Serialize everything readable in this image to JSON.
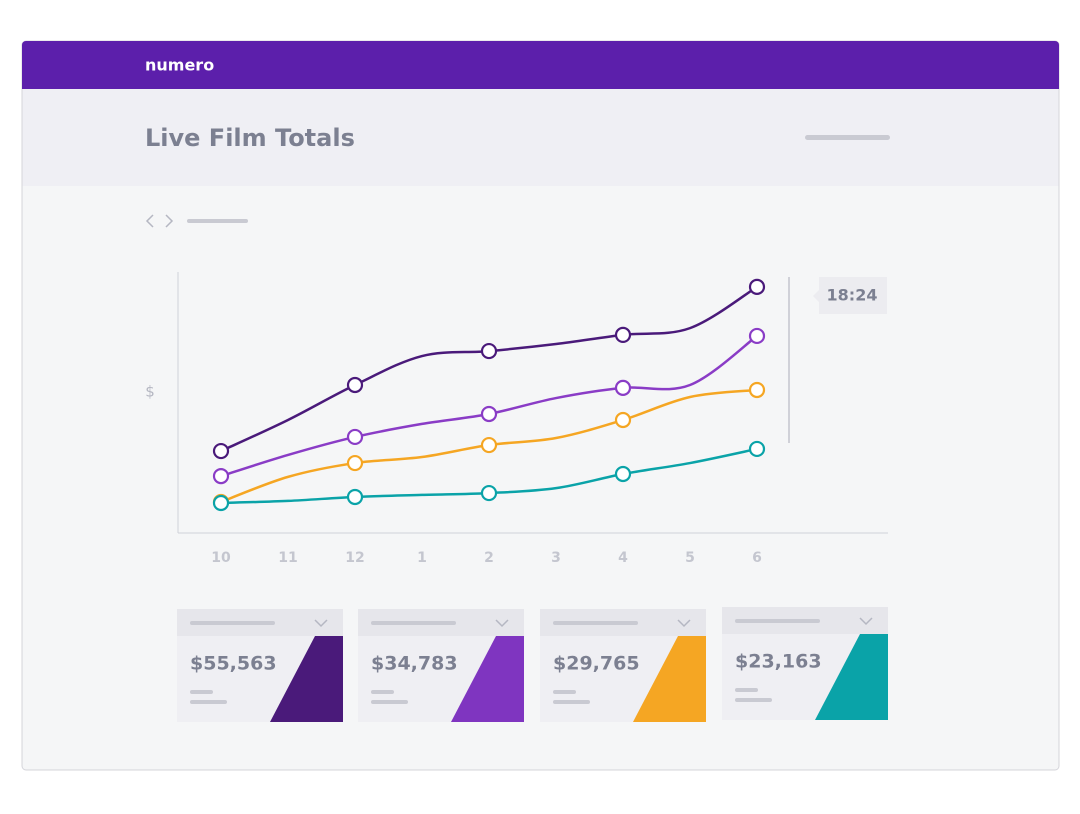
{
  "header": {
    "brand": "numero",
    "title": "Live Film Totals"
  },
  "chart_data": {
    "type": "line",
    "y_label": "$",
    "tooltip": "18:24",
    "categories": [
      "10",
      "11",
      "12",
      "1",
      "2",
      "3",
      "4",
      "5",
      "6"
    ],
    "ylim": [
      0,
      100
    ],
    "marker_every": 2,
    "series": [
      {
        "color": "#4a1a7a",
        "values": [
          31.4,
          43.3,
          56.7,
          67.8,
          69.7,
          72.4,
          75.9,
          78.5,
          94.3
        ]
      },
      {
        "color": "#8a3cc6",
        "values": [
          21.8,
          29.9,
          36.8,
          41.8,
          45.6,
          51.7,
          55.6,
          56.7,
          75.5
        ]
      },
      {
        "color": "#f5a623",
        "values": [
          11.9,
          21.5,
          26.8,
          29.1,
          33.7,
          36.4,
          43.3,
          52.1,
          54.8
        ]
      },
      {
        "color": "#0aa3a8",
        "values": [
          11.5,
          12.3,
          13.8,
          14.6,
          15.3,
          17.2,
          22.6,
          26.8,
          32.2
        ]
      }
    ]
  },
  "cards": [
    {
      "value": "$55,563",
      "color": "#4a1a7a"
    },
    {
      "value": "$34,783",
      "color": "#7f35c0"
    },
    {
      "value": "$29,765",
      "color": "#f5a623"
    },
    {
      "value": "$23,163",
      "color": "#0aa3a8"
    }
  ]
}
